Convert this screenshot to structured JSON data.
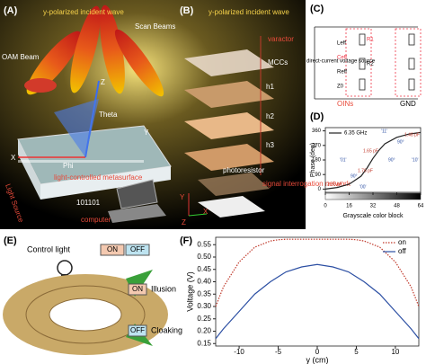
{
  "panels": {
    "A": {
      "label": "(A)",
      "incident": "y-polarized incident wave",
      "scan": "Scan Beams",
      "oam": "OAM Beam",
      "theta": "Theta",
      "phi": "Phi",
      "z": "Z",
      "x": "X",
      "y": "Y",
      "metasurface": "light-controlled metasurface",
      "light": "Light Source",
      "code": "101101",
      "computer": "computer"
    },
    "B": {
      "label": "(B)",
      "incident": "y-polarized incident wave",
      "varactor": "varactor",
      "layer": "MCCs",
      "h1": "h1",
      "h2": "h2",
      "h3": "h3",
      "photoresistor": "photoresistor",
      "network": "signal interrogation network",
      "x": "X",
      "y": "Y",
      "z": "Z"
    },
    "C": {
      "label": "(C)",
      "source": "direct-current voltage source",
      "oins": "OINs",
      "gnd": "GND",
      "leff": "Leff",
      "ceff": "Ceff",
      "reff": "Reff",
      "z0": "Z0",
      "r1": "R1",
      "r2": "R2"
    },
    "D": {
      "label": "(D)"
    },
    "E": {
      "label": "(E)",
      "control": "Control light",
      "on": "ON",
      "off": "OFF",
      "illusion": "Illusion",
      "cloaking": "Cloaking"
    },
    "F": {
      "label": "(F)"
    }
  },
  "chart_data": [
    {
      "type": "line",
      "xlabel": "Grayscale color block",
      "ylabel": "Phase (deg)",
      "xlim": [
        0,
        64
      ],
      "xticks": [
        0,
        16,
        32,
        48,
        64
      ],
      "ylim": [
        -20,
        380
      ],
      "yticks": [
        0,
        90,
        180,
        270,
        360
      ],
      "x": [
        0,
        8,
        16,
        24,
        28,
        32,
        36,
        40,
        48,
        56,
        64
      ],
      "series": [
        {
          "name": "6.35 GHz",
          "color": "#222222",
          "linestyle": "solid",
          "values": [
            0,
            10,
            30,
            80,
            130,
            190,
            240,
            280,
            320,
            340,
            350
          ]
        }
      ],
      "annotations": [
        "2.36 pF",
        "1.76 pF",
        "1.65 pF",
        "1.48 pF",
        "'00'",
        "'01'",
        "'11'",
        "'10'",
        "90°",
        "90°",
        "90°"
      ],
      "legend": "upper left"
    },
    {
      "type": "line",
      "xlabel": "y (cm)",
      "ylabel": "Voltage (V)",
      "xlim": [
        -13,
        13
      ],
      "xticks": [
        -10,
        -5,
        0,
        5,
        10
      ],
      "ylim": [
        0.14,
        0.58
      ],
      "yticks": [
        0.15,
        {
          "value": 0.2,
          "label": "0.20"
        },
        0.25,
        {
          "value": 0.3,
          "label": "0.30"
        },
        0.35,
        {
          "value": 0.4,
          "label": "0.40"
        },
        0.45,
        {
          "value": 0.5,
          "label": "0.50"
        },
        0.55
      ],
      "x": [
        -13,
        -12,
        -10,
        -8,
        -6,
        -5,
        -4,
        -2,
        0,
        2,
        4,
        5,
        6,
        8,
        10,
        12,
        13
      ],
      "series": [
        {
          "name": "on",
          "color": "#c0392b",
          "linestyle": "dotted",
          "values": [
            0.3,
            0.38,
            0.48,
            0.54,
            0.565,
            0.57,
            0.572,
            0.572,
            0.572,
            0.572,
            0.572,
            0.57,
            0.565,
            0.54,
            0.48,
            0.38,
            0.3
          ]
        },
        {
          "name": "off",
          "color": "#2c4fa3",
          "linestyle": "solid",
          "values": [
            0.17,
            0.21,
            0.28,
            0.35,
            0.4,
            0.42,
            0.44,
            0.46,
            0.47,
            0.46,
            0.44,
            0.42,
            0.4,
            0.35,
            0.28,
            0.21,
            0.17
          ]
        }
      ],
      "legend": "upper right"
    }
  ]
}
